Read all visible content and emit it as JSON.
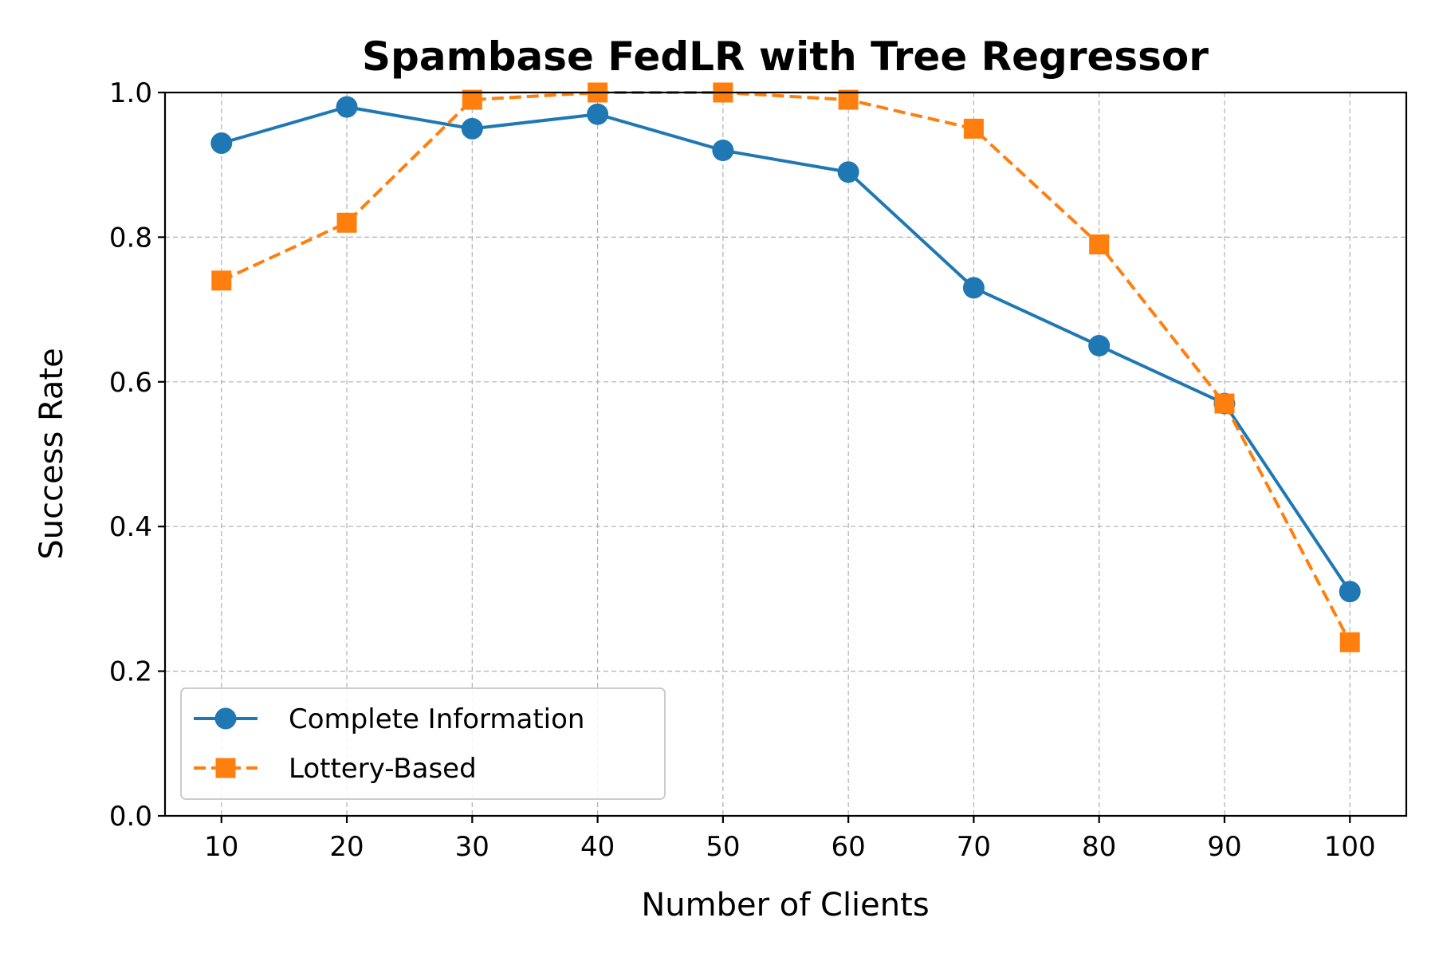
{
  "chart_data": {
    "type": "line",
    "title": "Spambase FedLR with Tree Regressor",
    "xlabel": "Number of Clients",
    "ylabel": "Success Rate",
    "x": [
      10,
      20,
      30,
      40,
      50,
      60,
      70,
      80,
      90,
      100
    ],
    "x_ticks": [
      "10",
      "20",
      "30",
      "40",
      "50",
      "60",
      "70",
      "80",
      "90",
      "100"
    ],
    "xlim": [
      5.5,
      104.5
    ],
    "y_ticks": [
      "0.0",
      "0.2",
      "0.4",
      "0.6",
      "0.8",
      "1.0"
    ],
    "ylim": [
      0.0,
      1.0
    ],
    "grid": true,
    "legend_position": "lower-left",
    "series": [
      {
        "name": "Complete Information",
        "values": [
          0.93,
          0.98,
          0.95,
          0.97,
          0.92,
          0.89,
          0.73,
          0.65,
          0.57,
          0.31
        ],
        "color": "#1f77b4",
        "marker": "circle",
        "line_style": "solid"
      },
      {
        "name": "Lottery-Based",
        "values": [
          0.74,
          0.82,
          0.99,
          1.0,
          1.0,
          0.99,
          0.95,
          0.79,
          0.57,
          0.24
        ],
        "color": "#ff7f0e",
        "marker": "square",
        "line_style": "dashed"
      }
    ]
  }
}
